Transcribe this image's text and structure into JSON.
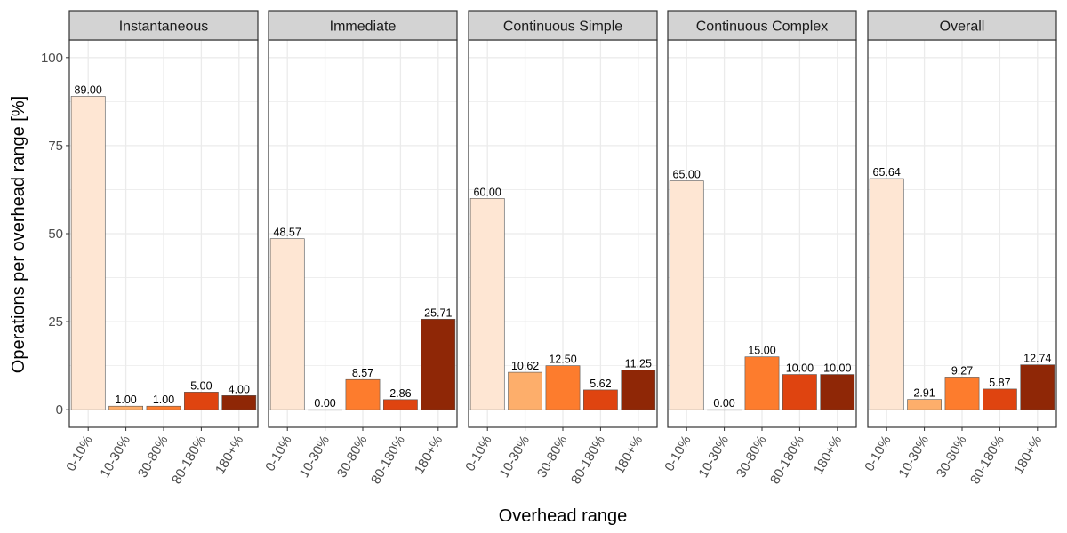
{
  "chart_data": {
    "type": "bar",
    "facets": [
      "Instantaneous",
      "Immediate",
      "Continuous Simple",
      "Continuous Complex",
      "Overall"
    ],
    "categories": [
      "0-10%",
      "10-30%",
      "30-80%",
      "80-180%",
      "180+%"
    ],
    "series": [
      {
        "facet": "Instantaneous",
        "values": [
          89.0,
          1.0,
          1.0,
          5.0,
          4.0
        ],
        "labels": [
          "89.00",
          "1.00",
          "1.00",
          "5.00",
          "4.00"
        ]
      },
      {
        "facet": "Immediate",
        "values": [
          48.57,
          0.0,
          8.57,
          2.86,
          25.71
        ],
        "labels": [
          "48.57",
          "0.00",
          "8.57",
          "2.86",
          "25.71"
        ]
      },
      {
        "facet": "Continuous Simple",
        "values": [
          60.0,
          10.62,
          12.5,
          5.62,
          11.25
        ],
        "labels": [
          "60.00",
          "10.62",
          "12.50",
          "5.62",
          "11.25"
        ]
      },
      {
        "facet": "Continuous Complex",
        "values": [
          65.0,
          0.0,
          15.0,
          10.0,
          10.0
        ],
        "labels": [
          "65.00",
          "0.00",
          "15.00",
          "10.00",
          "10.00"
        ]
      },
      {
        "facet": "Overall",
        "values": [
          65.64,
          2.91,
          9.27,
          5.87,
          12.74
        ],
        "labels": [
          "65.64",
          "2.91",
          "9.27",
          "5.87",
          "12.74"
        ]
      }
    ],
    "category_colors": [
      "#fee6d3",
      "#fdae6b",
      "#fd7c2d",
      "#df4410",
      "#8f2706"
    ],
    "bar_outline": "#555555",
    "xlabel": "Overhead range",
    "ylabel": "Operations per overhead range [%]",
    "yticks": [
      "0",
      "25",
      "50",
      "75",
      "100"
    ],
    "ytick_values": [
      0,
      25,
      50,
      75,
      100
    ],
    "ylim": [
      -5,
      105
    ],
    "grid": true,
    "legend": "none",
    "strip_fill": "#d3d3d3",
    "panel_border": "#333333",
    "grid_color": "#ebebeb"
  }
}
